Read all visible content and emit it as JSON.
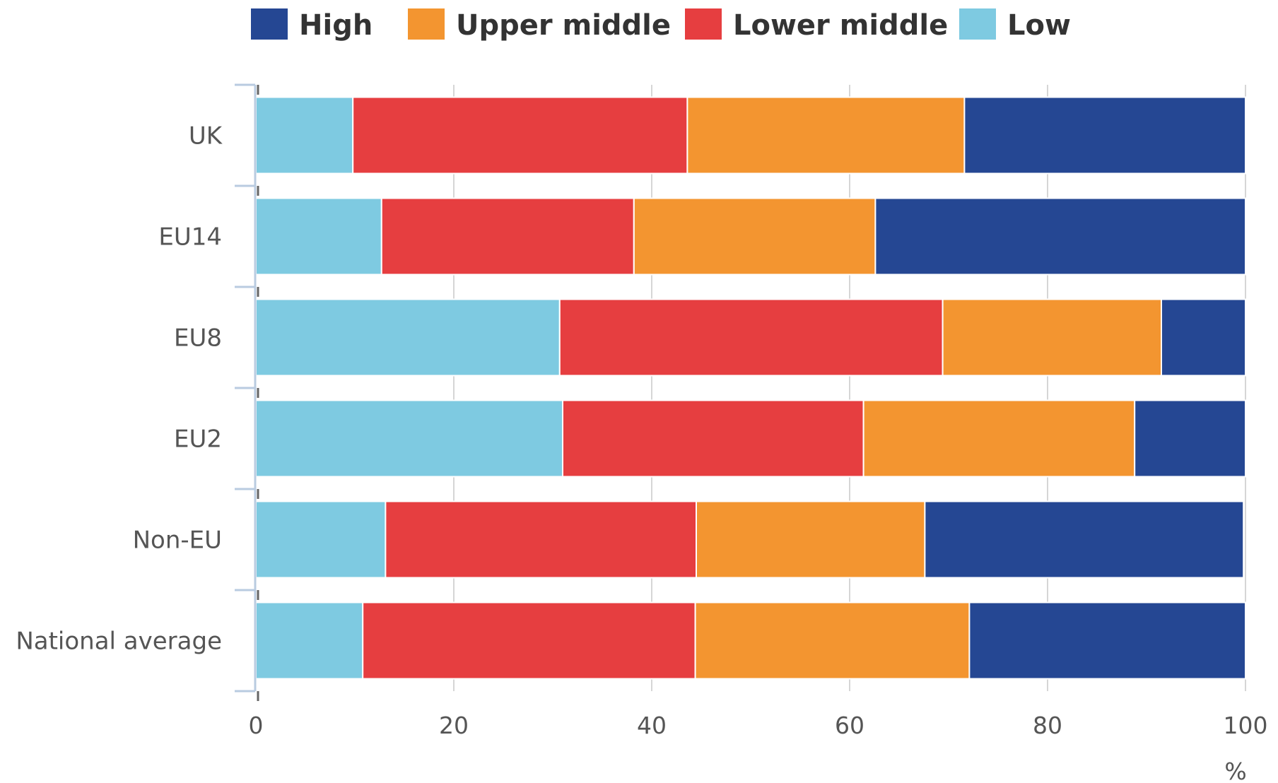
{
  "chart_data": {
    "type": "bar",
    "orientation": "horizontal",
    "stacked": true,
    "categories": [
      "UK",
      "EU14",
      "EU8",
      "EU2",
      "Non-EU",
      "National average"
    ],
    "series": [
      {
        "name": "Low",
        "color": "#7ecae1",
        "values": [
          9.8,
          12.7,
          30.7,
          31.0,
          13.1,
          10.8
        ]
      },
      {
        "name": "Lower middle",
        "color": "#e63e40",
        "values": [
          33.8,
          25.5,
          38.7,
          30.4,
          31.4,
          33.6
        ]
      },
      {
        "name": "Upper middle",
        "color": "#f39530",
        "values": [
          28.0,
          24.4,
          22.1,
          27.4,
          23.1,
          27.7
        ]
      },
      {
        "name": "High",
        "color": "#254793",
        "values": [
          28.4,
          37.4,
          8.5,
          11.2,
          32.2,
          27.9
        ]
      }
    ],
    "legend_order": [
      "High",
      "Upper middle",
      "Lower middle",
      "Low"
    ],
    "legend_position": "top",
    "x_ticks": [
      "0",
      "20",
      "40",
      "60",
      "80",
      "100"
    ],
    "xlim": [
      0,
      100
    ],
    "x_unit": "%",
    "grid": true
  }
}
